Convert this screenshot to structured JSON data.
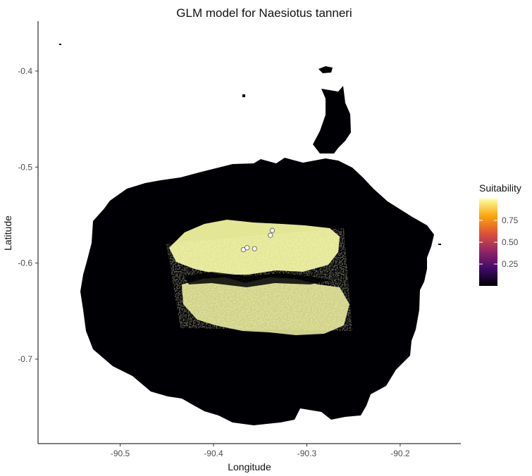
{
  "chart_data": {
    "type": "heatmap",
    "title": "GLM model for Naesiotus tanneri",
    "xlabel": "Longitude",
    "ylabel": "Latitude",
    "xlim": [
      -90.588,
      -90.135
    ],
    "ylim": [
      -0.788,
      -0.348
    ],
    "x_ticks": [
      -90.5,
      -90.4,
      -90.3,
      -90.2
    ],
    "x_tick_labels": [
      "-90.5",
      "-90.4",
      "-90.3",
      "-90.2"
    ],
    "y_ticks": [
      -0.4,
      -0.5,
      -0.6,
      -0.7
    ],
    "y_tick_labels": [
      "-0.4",
      "-0.5",
      "-0.6",
      "-0.7"
    ],
    "grid": false,
    "legend": {
      "title": "Suitability",
      "placement": "right",
      "breaks": [
        0.25,
        0.5,
        0.75
      ],
      "break_labels": [
        "0.25",
        "0.50",
        "0.75"
      ],
      "colorscale": [
        "#000004",
        "#420a68",
        "#932667",
        "#dd513a",
        "#fca50a",
        "#fcffa4"
      ]
    },
    "regions": [
      {
        "name": "island",
        "suitability": 0.0
      },
      {
        "name": "highland-north-band",
        "suitability": 1.0
      },
      {
        "name": "highland-south-band",
        "suitability": 1.0
      }
    ],
    "occurrence_points": [
      {
        "lon": -90.368,
        "lat": -0.586
      },
      {
        "lon": -90.364,
        "lat": -0.584
      },
      {
        "lon": -90.356,
        "lat": -0.585
      },
      {
        "lon": -90.339,
        "lat": -0.571
      },
      {
        "lon": -90.337,
        "lat": -0.566
      }
    ]
  }
}
